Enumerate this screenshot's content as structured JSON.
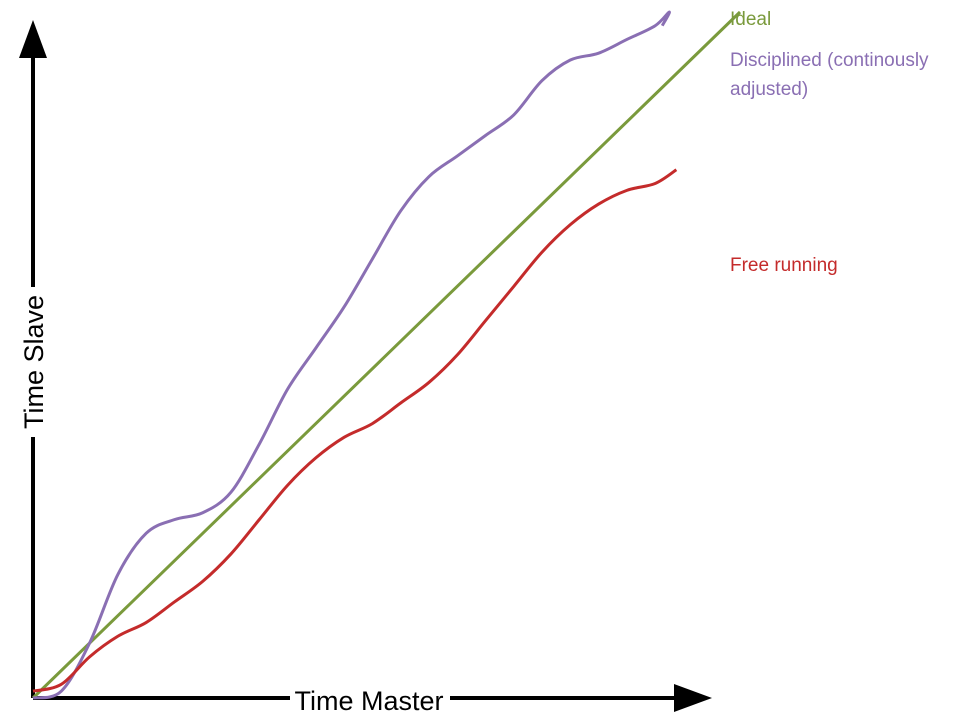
{
  "chart_data": {
    "type": "line",
    "title": "",
    "xlabel": "Time Master",
    "ylabel": "Time Slave",
    "xlim": [
      0,
      100
    ],
    "ylim": [
      0,
      100
    ],
    "grid": false,
    "legend_placement": "right, labels at line ends",
    "series": [
      {
        "name": "Ideal",
        "color": "#7a9a3c",
        "points": [
          [
            0,
            0
          ],
          [
            100,
            100
          ]
        ]
      },
      {
        "name": "Disciplined (continously adjusted)",
        "color": "#8a6fb3",
        "points": [
          [
            0,
            0
          ],
          [
            4,
            1
          ],
          [
            8,
            8
          ],
          [
            12,
            18
          ],
          [
            16,
            24
          ],
          [
            20,
            26
          ],
          [
            24,
            27
          ],
          [
            28,
            30
          ],
          [
            32,
            37
          ],
          [
            36,
            45
          ],
          [
            40,
            51
          ],
          [
            44,
            57
          ],
          [
            48,
            64
          ],
          [
            52,
            71
          ],
          [
            56,
            76
          ],
          [
            60,
            79
          ],
          [
            64,
            82
          ],
          [
            68,
            85
          ],
          [
            72,
            90
          ],
          [
            76,
            93
          ],
          [
            80,
            94
          ],
          [
            84,
            96
          ],
          [
            88,
            98
          ],
          [
            90,
            100
          ],
          [
            89,
            98
          ]
        ],
        "labels": [
          "Disciplined (continously",
          "adjusted)"
        ]
      },
      {
        "name": "Free running",
        "color": "#c42b2b",
        "points": [
          [
            0,
            1
          ],
          [
            4,
            2
          ],
          [
            8,
            6
          ],
          [
            12,
            9
          ],
          [
            16,
            11
          ],
          [
            20,
            14
          ],
          [
            24,
            17
          ],
          [
            28,
            21
          ],
          [
            32,
            26
          ],
          [
            36,
            31
          ],
          [
            40,
            35
          ],
          [
            44,
            38
          ],
          [
            48,
            40
          ],
          [
            52,
            43
          ],
          [
            56,
            46
          ],
          [
            60,
            50
          ],
          [
            64,
            55
          ],
          [
            68,
            60
          ],
          [
            72,
            65
          ],
          [
            76,
            69
          ],
          [
            80,
            72
          ],
          [
            84,
            74
          ],
          [
            88,
            75
          ],
          [
            91,
            77
          ]
        ]
      }
    ]
  }
}
